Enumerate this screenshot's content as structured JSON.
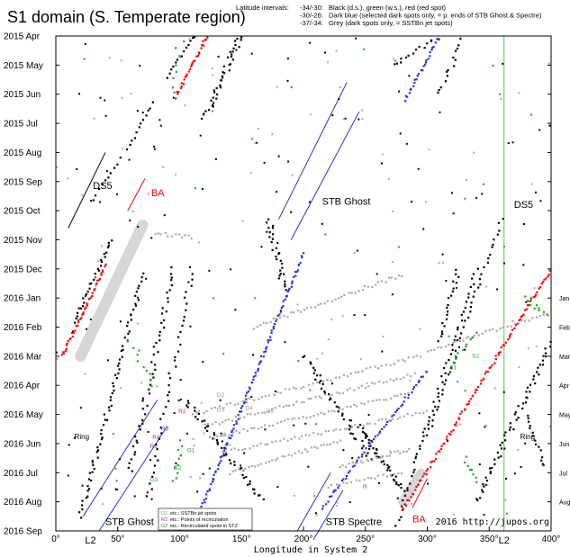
{
  "chart_data": {
    "type": "scatter",
    "title": "S1 domain (S. Temperate region)",
    "legend_top": {
      "heading": "Latitude intervals:",
      "lines": [
        {
          "range": "-34/-30:",
          "text": "Black (d.s.), green (w.s.), red (red spot)"
        },
        {
          "range": "-30/-26:",
          "text": "Dark blue (selected dark spots only, = p. ends of STB Ghost & Spectre)"
        },
        {
          "range": "-37/-34:",
          "text": "Grey (dark spots only, = SSTBn jet spots)"
        }
      ]
    },
    "xlabel": "Longitude in System 2",
    "xlim": [
      0,
      400
    ],
    "x_ticks": [
      "0°",
      "50°",
      "100°",
      "150°",
      "200°",
      "250°",
      "300°",
      "350°",
      "400°"
    ],
    "y_ticks_left": [
      "2015 Apr",
      "2015 May",
      "2015 Jun",
      "2015 Jul",
      "2015 Aug",
      "2015 Sep",
      "2015 Oct",
      "2015 Nov",
      "2015 Dec",
      "2016 Jan",
      "2016 Feb",
      "2016 Mar",
      "2016 Apr",
      "2016 May",
      "2016 Jun",
      "2016 Jul",
      "2016 Aug",
      "2016 Sep"
    ],
    "y_ticks_right": [
      "Jan",
      "Feb",
      "Mar",
      "Apr",
      "May",
      "Jun",
      "Jul",
      "Aug"
    ],
    "L2_label": "L2",
    "L2_longitudes": [
      28,
      362
    ],
    "credit": "2016 http://jupos.org",
    "colors": {
      "black": "#000000",
      "green": "#22aa22",
      "red": "#ff0000",
      "blue": "#2233dd",
      "grey": "#aaaaaa",
      "l2_line": "#33dd33",
      "band": "#cccccc"
    },
    "feature_labels": [
      {
        "text": "DS5",
        "x": 30,
        "y": 5.25,
        "color": "#000000",
        "size": 11
      },
      {
        "text": "BA",
        "x": 77,
        "y": 5.5,
        "color": "#ff0000",
        "size": 11
      },
      {
        "text": "STB Ghost",
        "x": 215,
        "y": 5.8,
        "color": "#000000",
        "size": 11
      },
      {
        "text": "DS5",
        "x": 370,
        "y": 5.9,
        "color": "#000000",
        "size": 11
      },
      {
        "text": "Ring",
        "x": 15,
        "y": 13.85,
        "color": "#000000",
        "size": 8
      },
      {
        "text": "Ring",
        "x": 375,
        "y": 13.85,
        "color": "#000000",
        "size": 8
      },
      {
        "text": "STB Ghost",
        "x": 40,
        "y": 16.8,
        "color": "#000000",
        "size": 11
      },
      {
        "text": "STB Spectre",
        "x": 218,
        "y": 16.8,
        "color": "#000000",
        "size": 11
      },
      {
        "text": "BA",
        "x": 288,
        "y": 16.7,
        "color": "#ff0000",
        "size": 11
      }
    ],
    "spot_labels": [
      {
        "text": "D2",
        "x": 130,
        "y": 12.4,
        "color": "#999999"
      },
      {
        "text": "D3",
        "x": 130,
        "y": 12.9,
        "color": "#999999"
      },
      {
        "text": "D4",
        "x": 153,
        "y": 12.85,
        "color": "#999999"
      },
      {
        "text": "D5",
        "x": 170,
        "y": 12.95,
        "color": "#999999"
      },
      {
        "text": "D6",
        "x": 132,
        "y": 13.75,
        "color": "#999999"
      },
      {
        "text": "R2",
        "x": 99,
        "y": 12.95,
        "color": "#993399"
      },
      {
        "text": "R3",
        "x": 85,
        "y": 13.55,
        "color": "#993399"
      },
      {
        "text": "R4",
        "x": 78,
        "y": 13.85,
        "color": "#993399"
      },
      {
        "text": "R5",
        "x": 76,
        "y": 14.15,
        "color": "#993399"
      },
      {
        "text": "R",
        "x": 248,
        "y": 15.55,
        "color": "#993399"
      },
      {
        "text": "G1",
        "x": 106,
        "y": 14.3,
        "color": "#22aa22"
      },
      {
        "text": "G2",
        "x": 95,
        "y": 14.9,
        "color": "#22aa22"
      },
      {
        "text": "G3",
        "x": 76,
        "y": 15.3,
        "color": "#22aa22"
      },
      {
        "text": "S1",
        "x": 318,
        "y": 11.45,
        "color": "#22aa22"
      },
      {
        "text": "S2",
        "x": 336,
        "y": 11.05,
        "color": "#22aa22"
      }
    ],
    "key_box": {
      "items": [
        {
          "sym": "D2",
          "color": "#999999",
          "text": "etc.:   SSTBn jet spots"
        },
        {
          "sym": "R2",
          "color": "#993399",
          "text": "etc.:   Points of recirculation"
        },
        {
          "sym": "G2",
          "color": "#22aa22",
          "text": "etc.:   Recirculated spots in STZ"
        }
      ]
    },
    "drifts": [
      {
        "color": "#000000",
        "x0": 52,
        "y0": 4.2,
        "x1": 30,
        "y1": 5.6,
        "n": 10,
        "w": 1.3
      },
      {
        "color": "#000000",
        "x0": 58,
        "y0": 3.9,
        "x1": 78,
        "y1": 2.3,
        "n": 12,
        "w": 1.3
      },
      {
        "color": "#000000",
        "x0": 112,
        "y0": 0.0,
        "x1": 90,
        "y1": 1.4,
        "n": 14,
        "w": 1.3
      },
      {
        "color": "#000000",
        "x0": 45,
        "y0": 7.0,
        "x1": 15,
        "y1": 9.8,
        "n": 30,
        "w": 2.4
      },
      {
        "color": "#000000",
        "x0": 70,
        "y0": 8.2,
        "x1": 20,
        "y1": 16.5,
        "n": 70,
        "w": 4
      },
      {
        "color": "#000000",
        "x0": 95,
        "y0": 8.0,
        "x1": 60,
        "y1": 15.0,
        "n": 50,
        "w": 5
      },
      {
        "color": "#000000",
        "x0": 150,
        "y0": 0.0,
        "x1": 120,
        "y1": 2.8,
        "n": 40,
        "w": 6
      },
      {
        "color": "#000000",
        "x0": 110,
        "y0": 8.0,
        "x1": 75,
        "y1": 15.8,
        "n": 40,
        "w": 5
      },
      {
        "color": "#000000",
        "x0": 105,
        "y0": 12.5,
        "x1": 165,
        "y1": 15.9,
        "n": 45,
        "w": 6
      },
      {
        "color": "#000000",
        "x0": 172,
        "y0": 6.3,
        "x1": 185,
        "y1": 8.8,
        "n": 30,
        "w": 6
      },
      {
        "color": "#000000",
        "x0": 200,
        "y0": 11.0,
        "x1": 255,
        "y1": 14.5,
        "n": 40,
        "w": 6
      },
      {
        "color": "#000000",
        "x0": 245,
        "y0": 13.4,
        "x1": 280,
        "y1": 15.6,
        "n": 40,
        "w": 4
      },
      {
        "color": "#000000",
        "x0": 360,
        "y0": 6.3,
        "x1": 300,
        "y1": 13.7,
        "n": 45,
        "w": 3
      },
      {
        "color": "#000000",
        "x0": 325,
        "y0": 8.0,
        "x1": 310,
        "y1": 10.5,
        "n": 20,
        "w": 4
      },
      {
        "color": "#000000",
        "x0": 340,
        "y0": 8.0,
        "x1": 275,
        "y1": 16.8,
        "n": 55,
        "w": 3
      },
      {
        "color": "#000000",
        "x0": 400,
        "y0": 10.5,
        "x1": 340,
        "y1": 16.0,
        "n": 60,
        "w": 5
      },
      {
        "color": "#000000",
        "x0": 272,
        "y0": 1.0,
        "x1": 310,
        "y1": 0.0,
        "n": 15,
        "w": 4
      },
      {
        "color": "#000000",
        "x0": 330,
        "y0": 0.0,
        "x1": 310,
        "y1": 2.0,
        "n": 15,
        "w": 4
      },
      {
        "color": "#000000",
        "x0": 380,
        "y0": 13.0,
        "x1": 395,
        "y1": 14.8,
        "n": 15,
        "w": 3
      },
      {
        "color": "#ff0000",
        "x0": 122,
        "y0": 0.0,
        "x1": 97,
        "y1": 2.1,
        "n": 30,
        "w": 1.5
      },
      {
        "color": "#ff0000",
        "x0": 40,
        "y0": 7.9,
        "x1": 5,
        "y1": 11.0,
        "n": 45,
        "w": 1.5
      },
      {
        "color": "#ff0000",
        "x0": 400,
        "y0": 8.0,
        "x1": 280,
        "y1": 16.3,
        "n": 110,
        "w": 1.5
      },
      {
        "color": "#2233dd",
        "x0": 310,
        "y0": 0.0,
        "x1": 282,
        "y1": 2.2,
        "n": 28,
        "w": 1.5
      },
      {
        "color": "#2233dd",
        "x0": 200,
        "y0": 7.5,
        "x1": 115,
        "y1": 16.5,
        "n": 110,
        "w": 1.5
      },
      {
        "color": "#2233dd",
        "x0": 300,
        "y0": 11.5,
        "x1": 215,
        "y1": 16.2,
        "n": 60,
        "w": 1.5
      },
      {
        "color": "#aaaaaa",
        "x0": 160,
        "y0": 10.0,
        "x1": 280,
        "y1": 8.2,
        "n": 45,
        "w": 1.5
      },
      {
        "color": "#aaaaaa",
        "x0": 110,
        "y0": 13.0,
        "x1": 295,
        "y1": 11.0,
        "n": 60,
        "w": 1.5
      },
      {
        "color": "#aaaaaa",
        "x0": 120,
        "y0": 13.4,
        "x1": 290,
        "y1": 11.6,
        "n": 60,
        "w": 1.5
      },
      {
        "color": "#aaaaaa",
        "x0": 125,
        "y0": 13.8,
        "x1": 285,
        "y1": 12.3,
        "n": 55,
        "w": 1.5
      },
      {
        "color": "#aaaaaa",
        "x0": 135,
        "y0": 14.3,
        "x1": 300,
        "y1": 12.9,
        "n": 55,
        "w": 1.5
      },
      {
        "color": "#aaaaaa",
        "x0": 140,
        "y0": 15.0,
        "x1": 230,
        "y1": 13.9,
        "n": 35,
        "w": 1.5
      },
      {
        "color": "#aaaaaa",
        "x0": 230,
        "y0": 14.8,
        "x1": 285,
        "y1": 14.2,
        "n": 25,
        "w": 1.5
      },
      {
        "color": "#aaaaaa",
        "x0": 80,
        "y0": 6.8,
        "x1": 110,
        "y1": 6.9,
        "n": 12,
        "w": 1.5
      },
      {
        "color": "#aaaaaa",
        "x0": 300,
        "y0": 10.8,
        "x1": 400,
        "y1": 9.5,
        "n": 35,
        "w": 1.5
      },
      {
        "color": "#aaaaaa",
        "x0": 220,
        "y0": 15.5,
        "x1": 280,
        "y1": 15.0,
        "n": 20,
        "w": 1.5
      },
      {
        "color": "#22aa22",
        "x0": 80,
        "y0": 12.0,
        "x1": 60,
        "y1": 10.5,
        "n": 10,
        "w": 6
      },
      {
        "color": "#22aa22",
        "x0": 102,
        "y0": 13.9,
        "x1": 95,
        "y1": 15.3,
        "n": 10,
        "w": 4
      },
      {
        "color": "#22aa22",
        "x0": 340,
        "y0": 10.2,
        "x1": 320,
        "y1": 11.2,
        "n": 10,
        "w": 5
      },
      {
        "color": "#22aa22",
        "x0": 380,
        "y0": 9.0,
        "x1": 395,
        "y1": 9.6,
        "n": 10,
        "w": 5
      },
      {
        "color": "#22aa22",
        "x0": 100,
        "y0": 0.2,
        "x1": 95,
        "y1": 2.0,
        "n": 8,
        "w": 8
      },
      {
        "color": "#22aa22",
        "x0": 330,
        "y0": 14.5,
        "x1": 340,
        "y1": 15.3,
        "n": 8,
        "w": 5
      }
    ],
    "guide_lines": [
      {
        "color": "#000000",
        "x0": 10,
        "y0": 6.6,
        "x1": 40,
        "y1": 4.0
      },
      {
        "color": "#ff0000",
        "x0": 58,
        "y0": 6.0,
        "x1": 72,
        "y1": 4.9
      },
      {
        "color": "#2233dd",
        "x0": 180,
        "y0": 6.3,
        "x1": 235,
        "y1": 1.6
      },
      {
        "color": "#2233dd",
        "x0": 190,
        "y0": 7.0,
        "x1": 245,
        "y1": 2.6
      },
      {
        "color": "#2233dd",
        "x0": 22,
        "y0": 16.5,
        "x1": 82,
        "y1": 12.5
      },
      {
        "color": "#2233dd",
        "x0": 35,
        "y0": 17.0,
        "x1": 90,
        "y1": 13.4
      },
      {
        "color": "#2233dd",
        "x0": 208,
        "y0": 17.3,
        "x1": 232,
        "y1": 15.6
      },
      {
        "color": "#2233dd",
        "x0": 195,
        "y0": 17.0,
        "x1": 222,
        "y1": 15.0
      },
      {
        "color": "#ff0000",
        "x0": 288,
        "y0": 16.2,
        "x1": 300,
        "y1": 15.2
      }
    ],
    "bands": [
      {
        "x0": 70,
        "y0": 6.5,
        "x1": 20,
        "y1": 11.0,
        "w": 9
      },
      {
        "x0": 295,
        "y0": 15.0,
        "x1": 280,
        "y1": 16.0,
        "w": 7
      }
    ]
  }
}
